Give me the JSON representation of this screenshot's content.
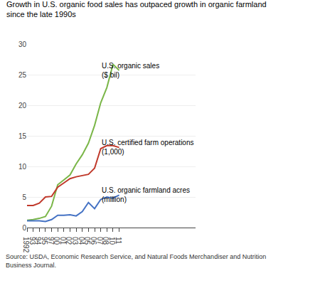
{
  "chart_data": {
    "type": "line",
    "title": "Growth in U.S. organic food sales has outpaced growth in organic farmland\nsince the late 1990s",
    "annotations": [
      "Source: USDA, Economic Research Service, and Natural Foods Merchandiser and Nutrition\nBusiness Journal."
    ],
    "categories": [
      "1992",
      "93",
      "94",
      "95",
      "97",
      "00",
      "01",
      "02",
      "03",
      "04",
      "05",
      "06",
      "07",
      "08",
      "10",
      "11"
    ],
    "series": [
      {
        "name": "U.S. organic sales\n($ bil)",
        "color": "#7ab648",
        "values": [
          1.2,
          1.3,
          1.5,
          1.8,
          3.5,
          7.0,
          7.8,
          8.6,
          10.4,
          11.9,
          13.8,
          16.7,
          20.4,
          22.9,
          26.7,
          25.7
        ]
      },
      {
        "name": "U.S. certified farm operations\n(1,000)",
        "color": "#c0392b",
        "values": [
          3.6,
          3.6,
          4.0,
          5.0,
          5.1,
          6.6,
          7.3,
          8.0,
          8.3,
          8.5,
          8.7,
          9.7,
          12.9,
          13.4,
          13.4,
          13.1
        ]
      },
      {
        "name": "U.S. organic farmland acres\n(million)",
        "color": "#4472c4",
        "values": [
          1.1,
          1.1,
          1.1,
          1.0,
          1.3,
          2.0,
          2.0,
          2.1,
          1.9,
          2.6,
          4.1,
          3.1,
          4.6,
          5.0,
          4.8,
          5.3
        ]
      }
    ],
    "ylim": [
      0,
      30
    ],
    "yticks": [
      0,
      5,
      10,
      15,
      20,
      25,
      30
    ],
    "grid": true
  }
}
